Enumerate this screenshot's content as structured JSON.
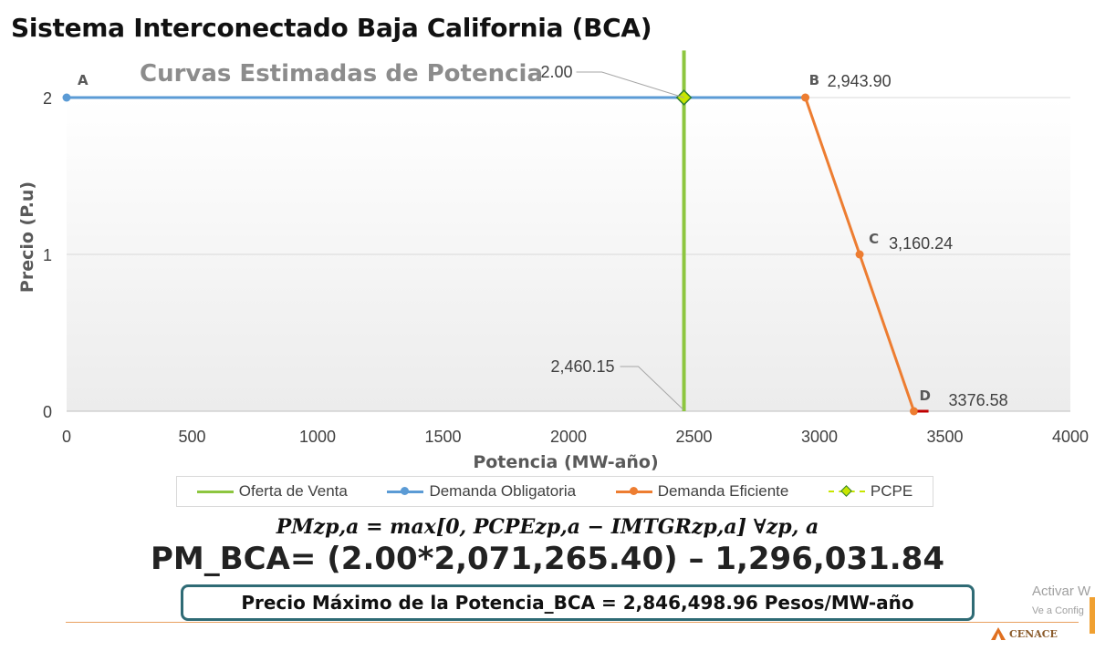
{
  "page": {
    "title": "Sistema Interconectado Baja California (BCA)"
  },
  "chart_data": {
    "type": "line",
    "title": "Curvas Estimadas de Potencia",
    "xlabel": "Potencia  (MW-año)",
    "ylabel": "Precio  (P.u)",
    "xlim": [
      0,
      4000
    ],
    "ylim": [
      0,
      2
    ],
    "xticks": [
      "0",
      "500",
      "1000",
      "1500",
      "2000",
      "2500",
      "3000",
      "3500",
      "4000"
    ],
    "yticks": [
      "0",
      "1",
      "2"
    ],
    "grid": true,
    "legend_position": "bottom",
    "series": [
      {
        "name": "Oferta de Venta",
        "color": "#8dc63f",
        "points": [
          [
            2460.15,
            0
          ],
          [
            2460.15,
            2.3
          ]
        ]
      },
      {
        "name": "Demanda Obligatoria",
        "color": "#5b9bd5",
        "points": [
          [
            0,
            2
          ],
          [
            2943.9,
            2
          ]
        ]
      },
      {
        "name": "Demanda Eficiente",
        "color": "#ed7d31",
        "points": [
          [
            2943.9,
            2
          ],
          [
            3160.24,
            1
          ],
          [
            3376.58,
            0
          ]
        ]
      },
      {
        "name": "PCPE",
        "color": "#c8e600",
        "points": [
          [
            2460.15,
            2
          ]
        ]
      }
    ],
    "point_labels": [
      {
        "letter": "A",
        "value": "",
        "x": 0,
        "y": 2
      },
      {
        "letter": "B",
        "value": "2,943.90",
        "x": 2943.9,
        "y": 2
      },
      {
        "letter": "C",
        "value": "3,160.24",
        "x": 3160.24,
        "y": 1
      },
      {
        "letter": "D",
        "value": "3376.58",
        "x": 3376.58,
        "y": 0
      }
    ],
    "annotations": [
      {
        "text": "2.00",
        "x": 2460.15,
        "y": 2
      },
      {
        "text": "2,460.15",
        "x": 2460.15,
        "y": 0
      }
    ]
  },
  "formula": {
    "pm_definition": "PMzp,a = max[0, PCPEzp,a − IMTGRzp,a]   ∀zp, a",
    "pm_bca": "PM_BCA= (2.00*2,071,265.40) – 1,296,031.84",
    "price_max": "Precio Máximo de la Potencia_BCA = 2,846,498.96 Pesos/MW-año"
  },
  "overlay": {
    "activate_text": "Activar W",
    "activate_sub": "Ve a Config"
  },
  "logo": {
    "text": "CENACE"
  }
}
